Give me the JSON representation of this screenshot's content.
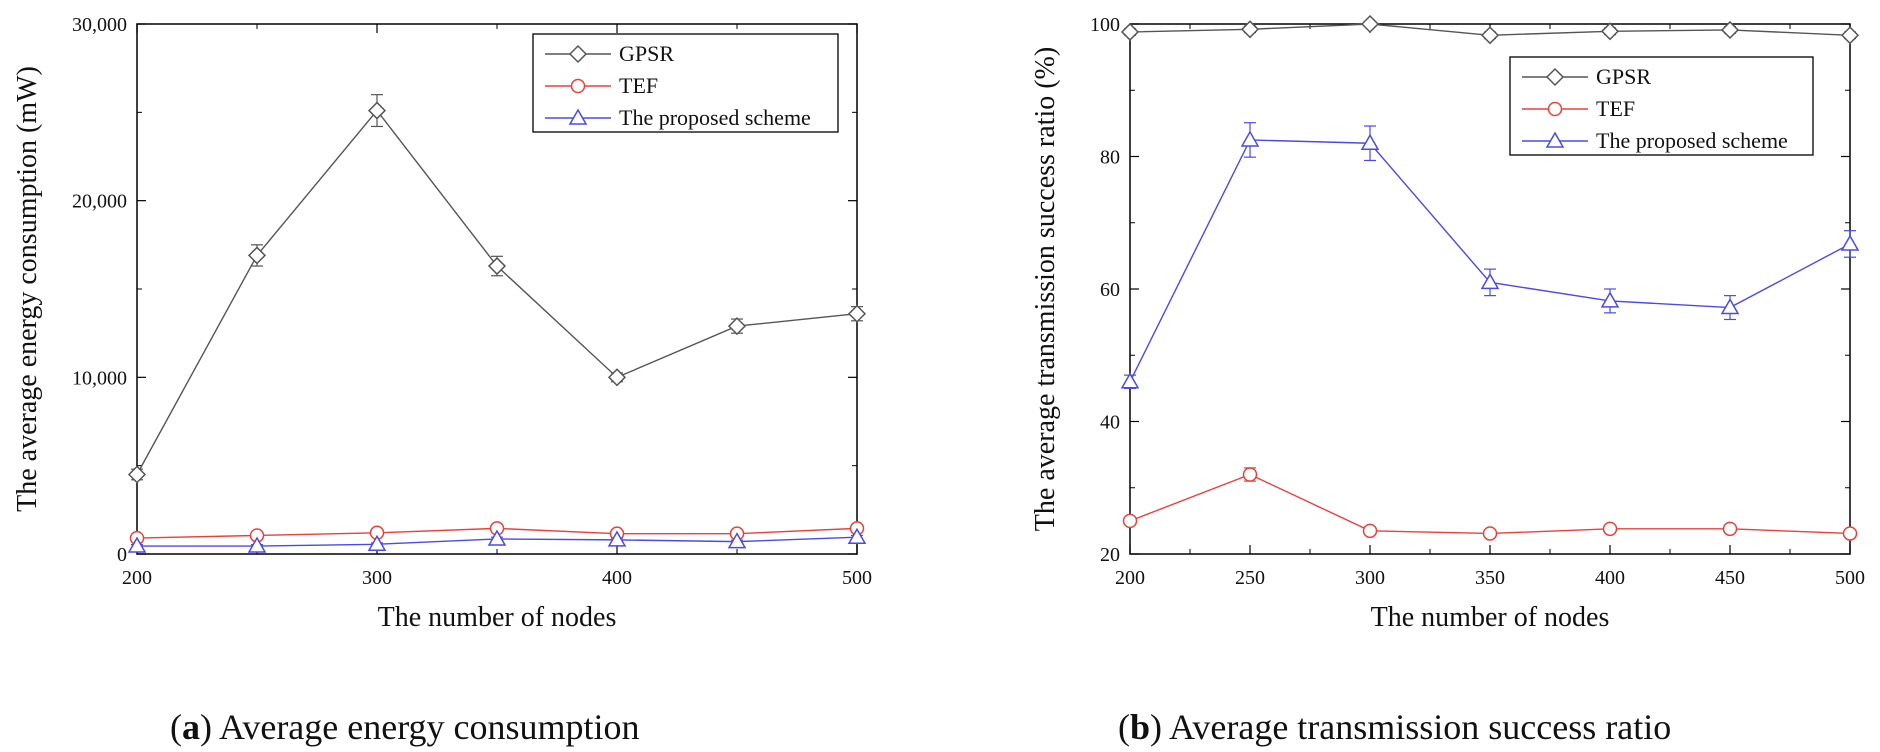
{
  "captions": [
    {
      "letter": "a",
      "text": "Average energy consumption"
    },
    {
      "letter": "b",
      "text": "Average transmission success ratio"
    }
  ],
  "chart_data": [
    {
      "type": "line",
      "title": "",
      "xlabel": "The number of nodes",
      "ylabel": "The average energy consumption (mW)",
      "x": [
        200,
        250,
        300,
        350,
        400,
        450,
        500
      ],
      "xlim": [
        200,
        500
      ],
      "ylim": [
        0,
        30000
      ],
      "xticks": [
        200,
        300,
        400,
        500
      ],
      "xtick_labels": [
        "200",
        "300",
        "400",
        "500"
      ],
      "yticks": [
        0,
        10000,
        20000,
        30000
      ],
      "ytick_labels": [
        "0",
        "10,000",
        "20,000",
        "30,000"
      ],
      "legend_position": "top-right",
      "series": [
        {
          "name": "GPSR",
          "color": "#555555",
          "marker": "diamond",
          "values": [
            4500,
            16900,
            25100,
            16300,
            10000,
            12900,
            13600
          ],
          "errors": [
            300,
            600,
            900,
            550,
            250,
            400,
            400
          ]
        },
        {
          "name": "TEF",
          "color": "#e8413c",
          "marker": "circle",
          "values": [
            900,
            1050,
            1200,
            1450,
            1150,
            1150,
            1450
          ],
          "errors": [
            100,
            100,
            100,
            150,
            100,
            100,
            100
          ]
        },
        {
          "name": "The proposed scheme",
          "color": "#4a4ae8",
          "marker": "triangle",
          "values": [
            450,
            450,
            550,
            850,
            800,
            700,
            950
          ],
          "errors": [
            80,
            80,
            80,
            100,
            100,
            80,
            100
          ]
        }
      ]
    },
    {
      "type": "line",
      "title": "",
      "xlabel": "The number of nodes",
      "ylabel": "The average transmission success ratio (%)",
      "x": [
        200,
        250,
        300,
        350,
        400,
        450,
        500
      ],
      "xlim": [
        200,
        500
      ],
      "ylim": [
        20,
        100
      ],
      "xticks": [
        200,
        250,
        300,
        350,
        400,
        450,
        500
      ],
      "xtick_labels": [
        "200",
        "250",
        "300",
        "350",
        "400",
        "450",
        "500"
      ],
      "yticks": [
        20,
        40,
        60,
        80,
        100
      ],
      "ytick_labels": [
        "20",
        "40",
        "60",
        "80",
        "100"
      ],
      "legend_position": "top-right",
      "series": [
        {
          "name": "GPSR",
          "color": "#555555",
          "marker": "diamond",
          "values": [
            98.8,
            99.2,
            100,
            98.3,
            98.9,
            99.1,
            98.3
          ],
          "errors": [
            0.5,
            0.5,
            0.3,
            0.5,
            0.5,
            0.5,
            0.5
          ]
        },
        {
          "name": "TEF",
          "color": "#e8413c",
          "marker": "circle",
          "values": [
            25,
            32,
            23.5,
            23.1,
            23.8,
            23.8,
            23.1
          ],
          "errors": [
            0.5,
            1.0,
            0.5,
            0.5,
            0.5,
            0.5,
            0.5
          ]
        },
        {
          "name": "The proposed scheme",
          "color": "#4a4ae8",
          "marker": "triangle",
          "values": [
            46,
            82.5,
            82,
            61,
            58.2,
            57.2,
            66.8
          ],
          "errors": [
            1.0,
            2.6,
            2.6,
            2.0,
            1.8,
            1.8,
            2.0
          ]
        }
      ]
    }
  ]
}
